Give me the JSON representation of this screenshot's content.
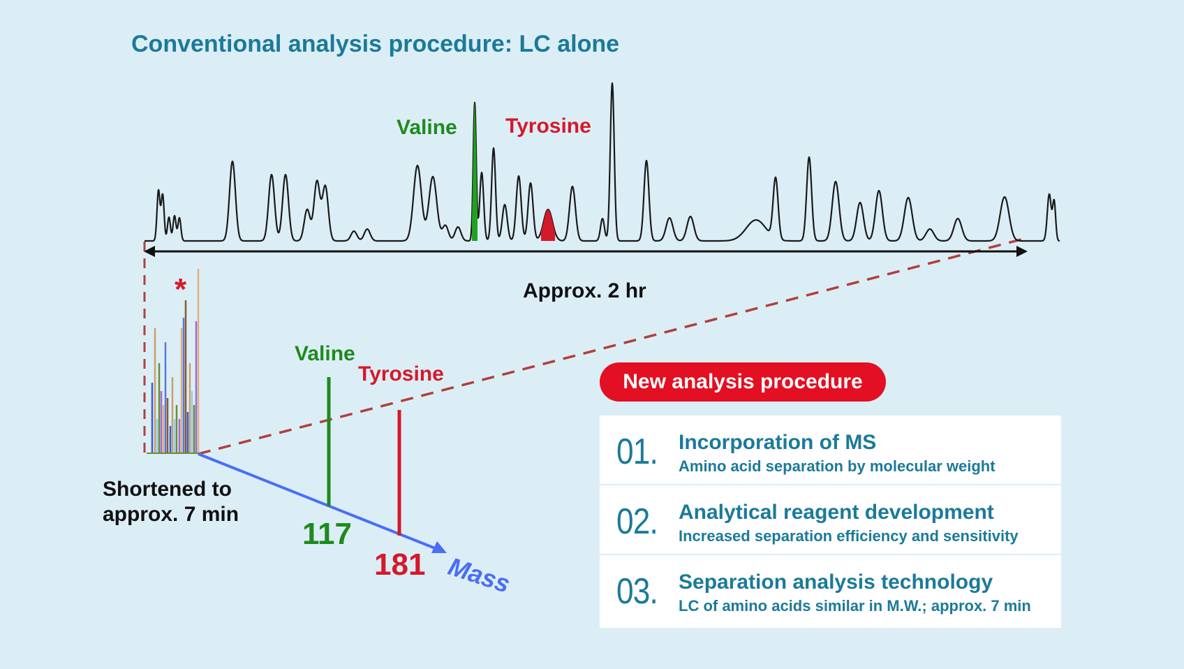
{
  "title": "Conventional analysis procedure: LC alone",
  "conventional": {
    "valine_label": "Valine",
    "tyrosine_label": "Tyrosine",
    "duration_label": "Approx. 2 hr"
  },
  "new_method": {
    "asterisk": "*",
    "valine_label": "Valine",
    "tyrosine_label": "Tyrosine",
    "valine_mass": "117",
    "tyrosine_mass": "181",
    "mass_axis_label": "Mass",
    "shortened_line1": "Shortened to",
    "shortened_line2": "approx. 7 min"
  },
  "new_procedure": {
    "heading": "New analysis procedure",
    "steps": [
      {
        "number": "01.",
        "title": "Incorporation of MS",
        "desc": "Amino acid separation by molecular weight"
      },
      {
        "number": "02.",
        "title": "Analytical reagent development",
        "desc": "Increased separation efficiency and sensitivity"
      },
      {
        "number": "03.",
        "title": "Separation analysis technology",
        "desc": "LC of amino acids similar in M.W.; approx. 7 min"
      }
    ]
  },
  "colors": {
    "background": "#dceef5",
    "title_teal": "#1b7a99",
    "valine_green": "#1e8a1e",
    "tyrosine_red": "#d4192b",
    "mass_blue": "#4a6ef5",
    "pill_red": "#e30f22",
    "dashed_red": "#b0403d"
  }
}
